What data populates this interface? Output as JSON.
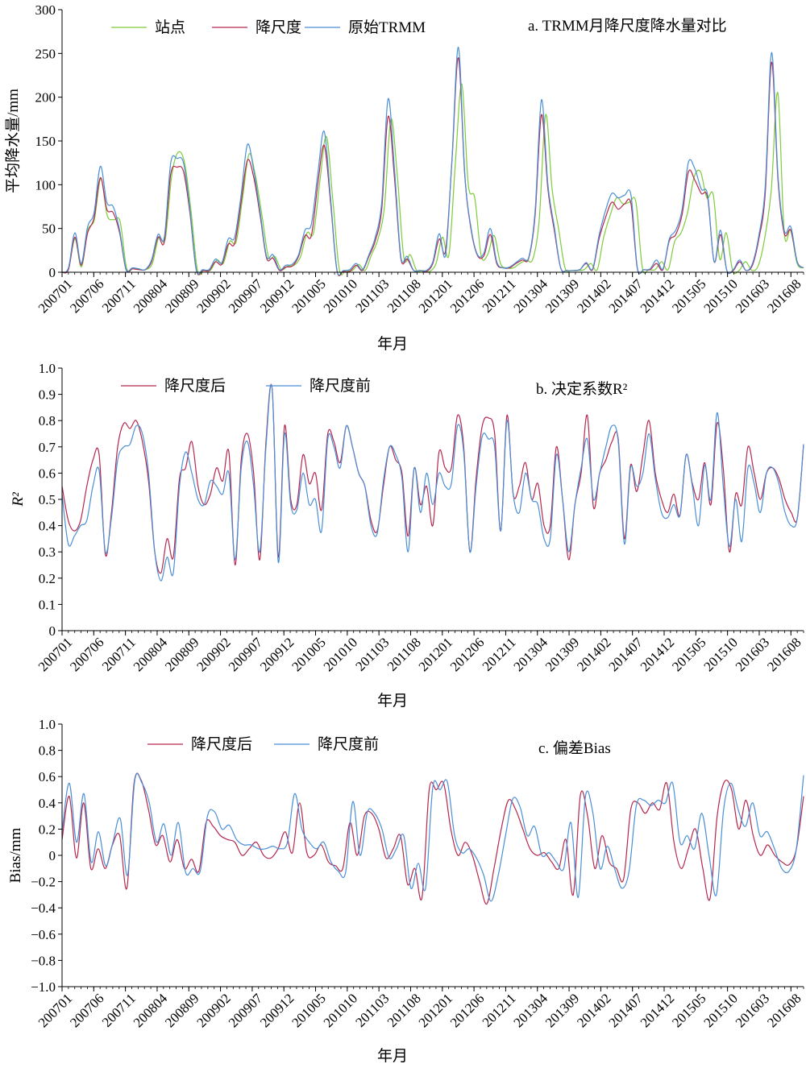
{
  "colors": {
    "station": "#7dcc3a",
    "downscaled": "#b5274d",
    "original": "#4a8fd6",
    "axis": "#000000"
  },
  "x_ticks": [
    "200701",
    "200706",
    "200711",
    "200804",
    "200809",
    "200902",
    "200907",
    "200912",
    "201005",
    "201010",
    "201103",
    "201108",
    "201201",
    "201206",
    "201211",
    "201304",
    "201309",
    "201402",
    "201407",
    "201412",
    "201505",
    "201510",
    "201603",
    "201608"
  ],
  "chart_data": [
    {
      "type": "line",
      "title": "a. TRMM月降尺度降水量对比",
      "xlabel": "年月",
      "ylabel": "平均降水量/mm",
      "ylim": [
        0,
        300
      ],
      "y_ticks": [
        "0",
        "50",
        "100",
        "150",
        "200",
        "250",
        "300"
      ],
      "x_start": "200701",
      "legend": "top-left",
      "grid": false,
      "series": [
        {
          "name": "站点",
          "color": "#7dcc3a",
          "values": [
            0,
            4,
            38,
            6,
            48,
            60,
            107,
            65,
            60,
            58,
            5,
            4,
            3,
            3,
            10,
            40,
            38,
            110,
            137,
            125,
            70,
            2,
            2,
            2,
            14,
            10,
            35,
            35,
            85,
            135,
            110,
            65,
            18,
            18,
            3,
            7,
            8,
            18,
            45,
            45,
            105,
            155,
            82,
            3,
            2,
            2,
            9,
            2,
            20,
            38,
            75,
            175,
            110,
            17,
            20,
            2,
            2,
            1,
            10,
            40,
            20,
            125,
            215,
            100,
            85,
            19,
            20,
            42,
            10,
            5,
            5,
            10,
            14,
            15,
            60,
            180,
            95,
            50,
            5,
            2,
            2,
            3,
            10,
            3,
            40,
            65,
            85,
            78,
            80,
            80,
            5,
            3,
            3,
            12,
            3,
            35,
            45,
            68,
            108,
            115,
            85,
            88,
            15,
            45,
            2,
            2,
            12,
            2,
            8,
            40,
            95,
            205,
            45,
            48,
            10,
            5
          ]
        },
        {
          "name": "降尺度",
          "color": "#b5274d",
          "values": [
            0,
            3,
            40,
            8,
            45,
            62,
            108,
            72,
            68,
            45,
            3,
            4,
            3,
            3,
            12,
            40,
            35,
            112,
            120,
            115,
            68,
            2,
            2,
            2,
            12,
            9,
            32,
            33,
            80,
            128,
            108,
            64,
            16,
            16,
            2,
            6,
            7,
            18,
            42,
            42,
            100,
            145,
            80,
            2,
            1,
            1,
            8,
            2,
            18,
            36,
            72,
            178,
            108,
            16,
            15,
            2,
            2,
            1,
            10,
            38,
            25,
            128,
            245,
            110,
            48,
            19,
            19,
            43,
            10,
            5,
            5,
            10,
            14,
            16,
            65,
            180,
            95,
            48,
            5,
            2,
            2,
            3,
            10,
            3,
            38,
            62,
            80,
            72,
            78,
            78,
            4,
            3,
            3,
            10,
            3,
            36,
            43,
            66,
            115,
            105,
            90,
            85,
            12,
            43,
            2,
            2,
            12,
            2,
            8,
            38,
            90,
            240,
            105,
            44,
            48,
            12,
            5
          ]
        },
        {
          "name": "原始TRMM",
          "color": "#4a8fd6",
          "values": [
            0,
            5,
            45,
            10,
            52,
            68,
            121,
            80,
            75,
            48,
            4,
            5,
            4,
            3,
            14,
            43,
            40,
            125,
            130,
            125,
            72,
            3,
            3,
            3,
            15,
            11,
            38,
            40,
            88,
            146,
            116,
            68,
            18,
            20,
            3,
            8,
            9,
            20,
            48,
            55,
            112,
            161,
            85,
            3,
            2,
            3,
            10,
            3,
            20,
            40,
            80,
            198,
            118,
            18,
            18,
            2,
            2,
            2,
            12,
            44,
            20,
            130,
            257,
            112,
            50,
            20,
            22,
            50,
            12,
            5,
            6,
            11,
            16,
            17,
            70,
            197,
            100,
            52,
            5,
            2,
            2,
            3,
            11,
            4,
            42,
            70,
            90,
            85,
            88,
            88,
            5,
            3,
            4,
            14,
            4,
            38,
            48,
            72,
            126,
            118,
            95,
            88,
            12,
            48,
            2,
            3,
            14,
            2,
            10,
            42,
            98,
            251,
            110,
            47,
            52,
            12,
            5
          ]
        }
      ]
    },
    {
      "type": "line",
      "title": "b. 决定系数R²",
      "xlabel": "年月",
      "ylabel": "R²",
      "ylim": [
        0,
        1.0
      ],
      "y_ticks": [
        "0",
        "0.1",
        "0.2",
        "0.3",
        "0.4",
        "0.5",
        "0.6",
        "0.7",
        "0.8",
        "0.9",
        "1.0"
      ],
      "x_start": "200701",
      "legend": "top-left",
      "grid": false,
      "series": [
        {
          "name": "降尺度后",
          "color": "#b5274d",
          "values": [
            0.55,
            0.42,
            0.38,
            0.42,
            0.55,
            0.65,
            0.67,
            0.29,
            0.45,
            0.7,
            0.79,
            0.77,
            0.8,
            0.72,
            0.57,
            0.3,
            0.22,
            0.35,
            0.28,
            0.58,
            0.62,
            0.72,
            0.55,
            0.48,
            0.52,
            0.62,
            0.57,
            0.68,
            0.25,
            0.65,
            0.75,
            0.6,
            0.27,
            0.72,
            0.92,
            0.28,
            0.78,
            0.5,
            0.48,
            0.67,
            0.56,
            0.6,
            0.46,
            0.75,
            0.72,
            0.64,
            0.78,
            0.7,
            0.6,
            0.55,
            0.42,
            0.38,
            0.55,
            0.7,
            0.65,
            0.6,
            0.36,
            0.62,
            0.48,
            0.55,
            0.4,
            0.68,
            0.62,
            0.62,
            0.82,
            0.7,
            0.3,
            0.58,
            0.78,
            0.81,
            0.75,
            0.38,
            0.82,
            0.52,
            0.55,
            0.64,
            0.5,
            0.56,
            0.4,
            0.4,
            0.7,
            0.5,
            0.27,
            0.48,
            0.6,
            0.82,
            0.47,
            0.6,
            0.65,
            0.72,
            0.73,
            0.35,
            0.63,
            0.53,
            0.67,
            0.8,
            0.6,
            0.5,
            0.45,
            0.52,
            0.44,
            0.67,
            0.56,
            0.5,
            0.64,
            0.48,
            0.79,
            0.62,
            0.3,
            0.52,
            0.48,
            0.7,
            0.6,
            0.5,
            0.6,
            0.62,
            0.58,
            0.5,
            0.45,
            0.43,
            0.71
          ]
        },
        {
          "name": "降尺度前",
          "color": "#4a8fd6",
          "values": [
            0.52,
            0.33,
            0.36,
            0.4,
            0.42,
            0.55,
            0.61,
            0.3,
            0.43,
            0.65,
            0.7,
            0.71,
            0.78,
            0.75,
            0.6,
            0.3,
            0.19,
            0.28,
            0.22,
            0.55,
            0.68,
            0.6,
            0.5,
            0.48,
            0.57,
            0.55,
            0.52,
            0.6,
            0.27,
            0.62,
            0.72,
            0.55,
            0.3,
            0.7,
            0.92,
            0.26,
            0.75,
            0.48,
            0.46,
            0.6,
            0.48,
            0.5,
            0.38,
            0.73,
            0.7,
            0.62,
            0.78,
            0.7,
            0.6,
            0.55,
            0.4,
            0.37,
            0.57,
            0.7,
            0.67,
            0.58,
            0.3,
            0.62,
            0.45,
            0.6,
            0.48,
            0.6,
            0.55,
            0.56,
            0.78,
            0.68,
            0.3,
            0.55,
            0.74,
            0.73,
            0.7,
            0.38,
            0.8,
            0.52,
            0.45,
            0.6,
            0.5,
            0.48,
            0.35,
            0.35,
            0.67,
            0.5,
            0.3,
            0.48,
            0.62,
            0.73,
            0.5,
            0.6,
            0.7,
            0.78,
            0.72,
            0.33,
            0.62,
            0.55,
            0.6,
            0.75,
            0.58,
            0.45,
            0.43,
            0.48,
            0.44,
            0.67,
            0.55,
            0.4,
            0.63,
            0.5,
            0.83,
            0.55,
            0.32,
            0.5,
            0.34,
            0.62,
            0.56,
            0.45,
            0.6,
            0.62,
            0.56,
            0.45,
            0.4,
            0.43,
            0.71
          ]
        }
      ]
    },
    {
      "type": "line",
      "title": "c. 偏差Bias",
      "xlabel": "年月",
      "ylabel": "Bias/mm",
      "ylim": [
        -1.0,
        1.0
      ],
      "y_ticks": [
        "−1.0",
        "−0.8",
        "−0.6",
        "−0.4",
        "−0.2",
        "0",
        "0.2",
        "0.4",
        "0.6",
        "0.8",
        "1.0"
      ],
      "x_start": "200701",
      "legend": "top-left",
      "grid": false,
      "series": [
        {
          "name": "降尺度后",
          "color": "#b5274d",
          "values": [
            0.12,
            0.45,
            -0.02,
            0.4,
            -0.1,
            0.05,
            -0.1,
            0.08,
            0.15,
            -0.25,
            0.55,
            0.57,
            0.35,
            0.08,
            0.15,
            -0.05,
            0.12,
            -0.1,
            -0.03,
            -0.12,
            0.25,
            0.22,
            0.15,
            0.12,
            0.1,
            0.0,
            0.05,
            0.1,
            0.0,
            -0.02,
            0.05,
            0.18,
            0.02,
            0.4,
            0.02,
            0.0,
            0.08,
            -0.05,
            -0.08,
            -0.1,
            0.25,
            0.0,
            0.3,
            0.32,
            0.2,
            -0.02,
            0.05,
            0.15,
            -0.22,
            -0.1,
            -0.32,
            0.5,
            0.5,
            0.55,
            0.2,
            0.0,
            0.1,
            0.0,
            -0.2,
            -0.37,
            -0.1,
            0.2,
            0.42,
            0.35,
            0.2,
            0.05,
            0.0,
            0.02,
            -0.05,
            -0.1,
            0.12,
            -0.3,
            0.46,
            0.3,
            -0.1,
            0.15,
            -0.05,
            -0.1,
            -0.18,
            0.35,
            0.4,
            0.32,
            0.4,
            0.35,
            0.55,
            0.1,
            -0.1,
            0.05,
            0.2,
            -0.1,
            -0.33,
            0.3,
            0.56,
            0.5,
            0.2,
            0.42,
            0.15,
            0.0,
            0.08,
            0.0,
            -0.05,
            -0.07,
            0.05,
            0.45
          ]
        },
        {
          "name": "降尺度前",
          "color": "#4a8fd6",
          "values": [
            0.18,
            0.55,
            0.1,
            0.47,
            -0.05,
            0.18,
            -0.08,
            0.1,
            0.28,
            -0.15,
            0.57,
            0.55,
            0.4,
            0.1,
            0.24,
            0.0,
            0.25,
            -0.13,
            -0.1,
            -0.12,
            0.3,
            0.33,
            0.2,
            0.23,
            0.12,
            0.08,
            0.08,
            0.05,
            0.05,
            0.07,
            0.05,
            0.1,
            0.47,
            0.2,
            0.1,
            0.05,
            0.1,
            -0.05,
            -0.12,
            -0.13,
            0.41,
            0.0,
            0.33,
            0.32,
            0.2,
            -0.02,
            0.05,
            0.15,
            -0.25,
            -0.06,
            -0.25,
            0.52,
            0.5,
            0.56,
            0.15,
            0.02,
            0.05,
            -0.02,
            -0.15,
            -0.35,
            -0.15,
            0.15,
            0.43,
            0.37,
            0.15,
            0.22,
            0.0,
            0.02,
            -0.05,
            -0.1,
            0.25,
            -0.32,
            0.45,
            0.33,
            -0.1,
            0.07,
            -0.1,
            -0.25,
            -0.12,
            0.38,
            0.42,
            0.38,
            0.42,
            0.4,
            0.55,
            0.1,
            0.15,
            0.05,
            0.32,
            0.0,
            -0.3,
            0.35,
            0.55,
            0.35,
            0.22,
            0.4,
            0.15,
            0.18,
            0.05,
            -0.1,
            -0.12,
            0.05,
            0.61
          ]
        }
      ]
    }
  ]
}
